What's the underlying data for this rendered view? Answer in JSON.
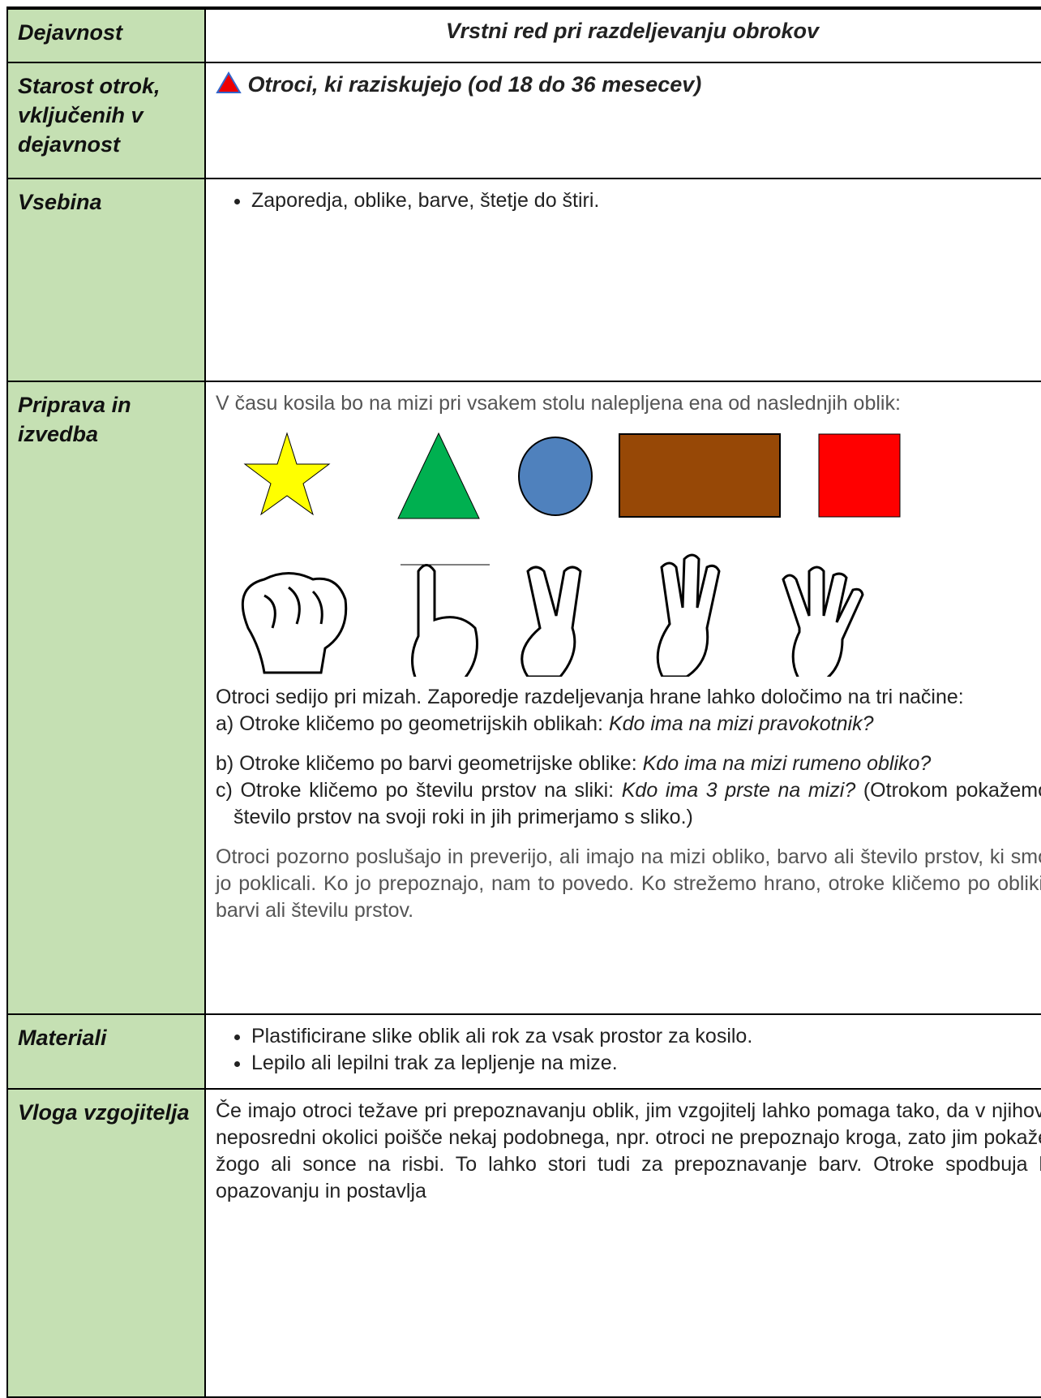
{
  "table": {
    "header": {
      "label": "Dejavnost",
      "title": "Vrstni red pri razdeljevanju obrokov"
    },
    "rows": [
      {
        "label": "Starost otrok, vključenih v dejavnost",
        "text": "Otroci, ki raziskujejo (od 18 do 36 mesecev)"
      },
      {
        "label": "Vsebina",
        "bullets": [
          "Zaporedja, oblike, barve, štetje do štiri."
        ]
      },
      {
        "label": "Priprava in izvedba",
        "intro": "V času kosila bo na mizi pri vsakem stolu nalepljena ena od naslednjih oblik:",
        "paragraph": "Otroci sedijo pri mizah. Zaporedje razdeljevanja hrane lahko določimo na tri načine:",
        "items": [
          {
            "text": "a) Otroke kličemo po geometrijskih oblikah: ",
            "question": "Kdo ima na mizi pravokotnik?"
          },
          {
            "text": "b) Otroke kličemo po barvi geometrijske oblike: ",
            "question": "Kdo ima na mizi rumeno obliko?"
          },
          {
            "text": "c) Otroke kličemo po številu prstov na sliki: ",
            "question": "Kdo ima 3 prste na mizi?",
            "note": "(Otrokom pokažemo število prstov na svoji roki in jih primerjamo s sliko.)"
          }
        ],
        "closing": "Otroci pozorno poslušajo in preverijo, ali imajo na mizi obliko, barvo ali število prstov, ki smo jo poklicali. Ko jo prepoznajo, nam to povedo. Ko strežemo hrano, otroke kličemo po obliki, barvi ali številu prstov."
      },
      {
        "label": "Materiali",
        "bullets": [
          "Plastificirane slike oblik ali rok za vsak prostor za kosilo.",
          "Lepilo ali lepilni trak za lepljenje na mize."
        ]
      },
      {
        "label": "Vloga vzgojitelja",
        "text": "Če imajo otroci težave pri prepoznavanju oblik, jim vzgojitelj lahko pomaga tako, da v njihovi neposredni okolici poišče nekaj podobnega, npr. otroci ne prepoznajo kroga, zato jim pokaže žogo ali sonce na risbi. To lahko stori tudi za prepoznavanje barv. Otroke spodbuja k opazovanju in postavlja"
      }
    ]
  }
}
